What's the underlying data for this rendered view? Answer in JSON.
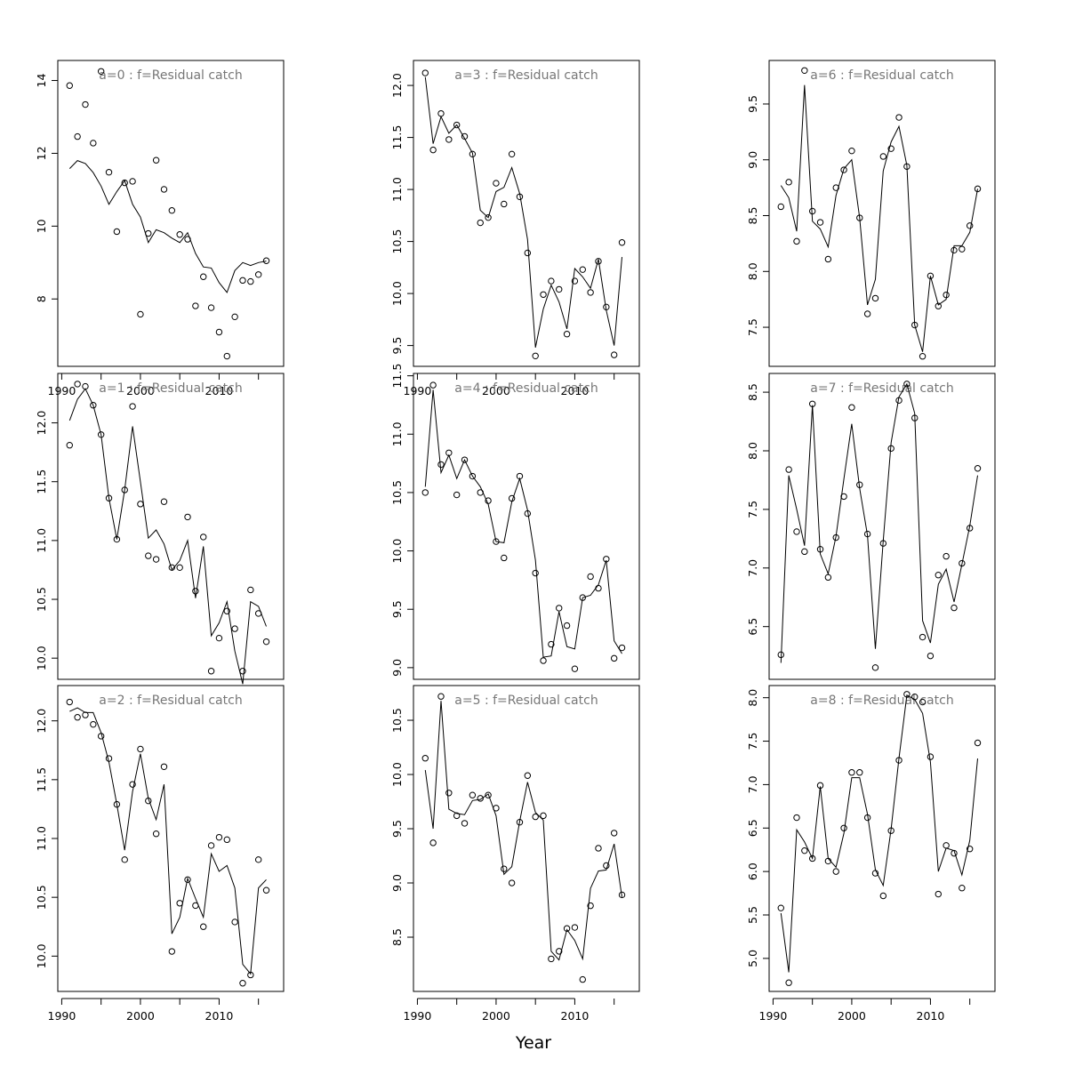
{
  "figure": {
    "xlabel": "Year"
  },
  "chart_data": [
    {
      "type": "line",
      "title": "a=0  :  f=Residual catch",
      "ylabel": "",
      "xlabel": "",
      "years": [
        1991,
        1992,
        1993,
        1994,
        1995,
        1996,
        1997,
        1998,
        1999,
        2000,
        2001,
        2002,
        2003,
        2004,
        2005,
        2006,
        2007,
        2008,
        2009,
        2010,
        2011,
        2012,
        2013,
        2014,
        2015,
        2016
      ],
      "observed": [
        13.86,
        12.46,
        13.34,
        12.28,
        14.25,
        11.48,
        9.85,
        11.19,
        11.23,
        7.58,
        9.8,
        11.81,
        11.01,
        10.43,
        9.77,
        9.64,
        7.81,
        8.61,
        7.76,
        7.09,
        6.43,
        7.51,
        8.51,
        8.48,
        8.67,
        9.05
      ],
      "fitted": [
        11.58,
        11.8,
        11.72,
        11.47,
        11.1,
        10.6,
        10.95,
        11.25,
        10.6,
        10.25,
        9.55,
        9.9,
        9.82,
        9.67,
        9.55,
        9.82,
        9.25,
        8.88,
        8.85,
        8.45,
        8.18,
        8.78,
        9.0,
        8.92,
        9.0,
        9.04
      ],
      "ylim": [
        6.15,
        14.55
      ],
      "yticks": [
        8,
        10,
        12,
        14
      ],
      "xticks": [
        1990,
        2000,
        2010
      ],
      "show_xaxis": true
    },
    {
      "type": "line",
      "title": "a=1  :  f=Residual catch",
      "ylabel": "",
      "xlabel": "",
      "years": [
        1991,
        1992,
        1993,
        1994,
        1995,
        1996,
        1997,
        1998,
        1999,
        2000,
        2001,
        2002,
        2003,
        2004,
        2005,
        2006,
        2007,
        2008,
        2009,
        2010,
        2011,
        2012,
        2013,
        2014,
        2015,
        2016
      ],
      "observed": [
        11.81,
        12.33,
        12.31,
        12.15,
        11.9,
        11.36,
        11.01,
        11.43,
        12.14,
        11.31,
        10.87,
        10.84,
        11.33,
        10.77,
        10.77,
        11.2,
        10.57,
        11.03,
        9.89,
        10.17,
        10.4,
        10.25,
        9.89,
        10.58,
        10.38,
        10.14
      ],
      "fitted": [
        12.02,
        12.2,
        12.29,
        12.15,
        11.9,
        11.36,
        11.01,
        11.43,
        11.97,
        11.5,
        11.02,
        11.09,
        10.97,
        10.75,
        10.83,
        11.0,
        10.51,
        10.95,
        10.19,
        10.3,
        10.48,
        10.06,
        9.78,
        10.48,
        10.44,
        10.27
      ],
      "ylim": [
        9.82,
        12.42
      ],
      "yticks": [
        10.0,
        10.5,
        11.0,
        11.5,
        12.0
      ],
      "xticks": [
        1990,
        2000,
        2010
      ],
      "show_xaxis": false
    },
    {
      "type": "line",
      "title": "a=2  :  f=Residual catch",
      "ylabel": "",
      "xlabel": "",
      "years": [
        1991,
        1992,
        1993,
        1994,
        1995,
        1996,
        1997,
        1998,
        1999,
        2000,
        2001,
        2002,
        2003,
        2004,
        2005,
        2006,
        2007,
        2008,
        2009,
        2010,
        2011,
        2012,
        2013,
        2014,
        2015,
        2016
      ],
      "observed": [
        12.16,
        12.03,
        12.05,
        11.97,
        11.87,
        11.68,
        11.29,
        10.82,
        11.46,
        11.76,
        11.32,
        11.04,
        11.61,
        10.04,
        10.45,
        10.65,
        10.43,
        10.25,
        10.94,
        11.01,
        10.99,
        10.29,
        9.77,
        9.84,
        10.82,
        10.56
      ],
      "fitted": [
        12.08,
        12.11,
        12.07,
        12.07,
        11.9,
        11.65,
        11.29,
        10.9,
        11.4,
        11.72,
        11.34,
        11.16,
        11.46,
        10.19,
        10.33,
        10.66,
        10.49,
        10.33,
        10.87,
        10.72,
        10.77,
        10.58,
        9.93,
        9.85,
        10.58,
        10.65
      ],
      "ylim": [
        9.7,
        12.3
      ],
      "yticks": [
        10.0,
        10.5,
        11.0,
        11.5,
        12.0
      ],
      "xticks": [
        1990,
        2000,
        2010
      ],
      "show_xaxis": true
    },
    {
      "type": "line",
      "title": "a=3  :  f=Residual catch",
      "ylabel": "",
      "xlabel": "",
      "years": [
        1991,
        1992,
        1993,
        1994,
        1995,
        1996,
        1997,
        1998,
        1999,
        2000,
        2001,
        2002,
        2003,
        2004,
        2005,
        2006,
        2007,
        2008,
        2009,
        2010,
        2011,
        2012,
        2013,
        2014,
        2015,
        2016
      ],
      "observed": [
        12.12,
        11.38,
        11.73,
        11.48,
        11.62,
        11.51,
        11.34,
        10.68,
        10.73,
        11.06,
        10.86,
        11.34,
        10.93,
        10.39,
        9.4,
        9.99,
        10.12,
        10.04,
        9.61,
        10.12,
        10.23,
        10.01,
        10.31,
        9.87,
        9.41,
        10.49
      ],
      "fitted": [
        12.08,
        11.44,
        11.7,
        11.54,
        11.62,
        11.49,
        11.35,
        10.8,
        10.73,
        10.98,
        11.02,
        11.21,
        10.96,
        10.52,
        9.48,
        9.85,
        10.08,
        9.92,
        9.66,
        10.24,
        10.16,
        10.05,
        10.33,
        9.84,
        9.5,
        10.35
      ],
      "ylim": [
        9.3,
        12.24
      ],
      "yticks": [
        9.5,
        10.0,
        10.5,
        11.0,
        11.5,
        12.0
      ],
      "xticks": [
        1990,
        2000,
        2010
      ],
      "show_xaxis": true
    },
    {
      "type": "line",
      "title": "a=4  :  f=Residual catch",
      "ylabel": "",
      "xlabel": "",
      "years": [
        1991,
        1992,
        1993,
        1994,
        1995,
        1996,
        1997,
        1998,
        1999,
        2000,
        2001,
        2002,
        2003,
        2004,
        2005,
        2006,
        2007,
        2008,
        2009,
        2010,
        2011,
        2012,
        2013,
        2014,
        2015,
        2016
      ],
      "observed": [
        10.5,
        11.42,
        10.74,
        10.84,
        10.48,
        10.78,
        10.64,
        10.5,
        10.43,
        10.08,
        9.94,
        10.45,
        10.64,
        10.32,
        9.81,
        9.06,
        9.2,
        9.51,
        9.36,
        8.99,
        9.6,
        9.78,
        9.68,
        9.93,
        9.08,
        9.17
      ],
      "fitted": [
        10.55,
        11.38,
        10.67,
        10.82,
        10.62,
        10.78,
        10.64,
        10.55,
        10.4,
        10.08,
        10.07,
        10.42,
        10.62,
        10.35,
        9.92,
        9.09,
        9.1,
        9.48,
        9.18,
        9.16,
        9.6,
        9.62,
        9.71,
        9.92,
        9.23,
        9.12
      ],
      "ylim": [
        8.9,
        11.52
      ],
      "yticks": [
        9.0,
        9.5,
        10.0,
        10.5,
        11.0,
        11.5
      ],
      "xticks": [
        1990,
        2000,
        2010
      ],
      "show_xaxis": false
    },
    {
      "type": "line",
      "title": "a=5  :  f=Residual catch",
      "ylabel": "",
      "xlabel": "",
      "years": [
        1991,
        1992,
        1993,
        1994,
        1995,
        1996,
        1997,
        1998,
        1999,
        2000,
        2001,
        2002,
        2003,
        2004,
        2005,
        2006,
        2007,
        2008,
        2009,
        2010,
        2011,
        2012,
        2013,
        2014,
        2015,
        2016
      ],
      "observed": [
        10.15,
        9.37,
        10.72,
        9.83,
        9.62,
        9.55,
        9.81,
        9.78,
        9.81,
        9.69,
        9.13,
        9.0,
        9.56,
        9.99,
        9.61,
        9.62,
        8.3,
        8.37,
        8.58,
        8.59,
        8.11,
        8.79,
        9.32,
        9.16,
        9.46,
        8.89
      ],
      "fitted": [
        10.04,
        9.5,
        10.68,
        9.68,
        9.64,
        9.63,
        9.76,
        9.77,
        9.82,
        9.62,
        9.08,
        9.15,
        9.57,
        9.93,
        9.65,
        9.58,
        8.37,
        8.29,
        8.57,
        8.47,
        8.3,
        8.95,
        9.11,
        9.12,
        9.36,
        8.87
      ],
      "ylim": [
        8.0,
        10.82
      ],
      "yticks": [
        8.5,
        9.0,
        9.5,
        10.0,
        10.5
      ],
      "xticks": [
        1990,
        2000,
        2010
      ],
      "show_xaxis": true
    },
    {
      "type": "line",
      "title": "a=6  :  f=Residual catch",
      "ylabel": "",
      "xlabel": "",
      "years": [
        1991,
        1992,
        1993,
        1994,
        1995,
        1996,
        1997,
        1998,
        1999,
        2000,
        2001,
        2002,
        2003,
        2004,
        2005,
        2006,
        2007,
        2008,
        2009,
        2010,
        2011,
        2012,
        2013,
        2014,
        2015,
        2016
      ],
      "observed": [
        8.58,
        8.8,
        8.27,
        9.8,
        8.54,
        8.44,
        8.11,
        8.75,
        8.91,
        9.08,
        8.48,
        7.62,
        7.76,
        9.03,
        9.1,
        9.38,
        8.94,
        7.52,
        7.24,
        7.96,
        7.69,
        7.79,
        8.19,
        8.2,
        8.41,
        8.74
      ],
      "fitted": [
        8.77,
        8.66,
        8.36,
        9.67,
        8.45,
        8.38,
        8.22,
        8.68,
        8.92,
        9.0,
        8.48,
        7.7,
        7.93,
        8.9,
        9.16,
        9.3,
        8.95,
        7.52,
        7.28,
        7.96,
        7.7,
        7.75,
        8.23,
        8.23,
        8.35,
        8.74
      ],
      "ylim": [
        7.15,
        9.89
      ],
      "yticks": [
        7.5,
        8.0,
        8.5,
        9.0,
        9.5
      ],
      "xticks": [
        1990,
        2000,
        2010
      ],
      "show_xaxis": false
    },
    {
      "type": "line",
      "title": "a=7  :  f=Residual catch",
      "ylabel": "",
      "xlabel": "",
      "years": [
        1991,
        1992,
        1993,
        1994,
        1995,
        1996,
        1997,
        1998,
        1999,
        2000,
        2001,
        2002,
        2003,
        2004,
        2005,
        2006,
        2007,
        2008,
        2009,
        2010,
        2011,
        2012,
        2013,
        2014,
        2015,
        2016
      ],
      "observed": [
        6.26,
        7.84,
        7.31,
        7.14,
        8.4,
        7.16,
        6.92,
        7.26,
        7.61,
        8.37,
        7.71,
        7.29,
        6.15,
        7.21,
        8.02,
        8.43,
        8.57,
        8.28,
        6.41,
        6.25,
        6.94,
        7.1,
        6.66,
        7.04,
        7.34,
        7.85
      ],
      "fitted": [
        6.19,
        7.79,
        7.5,
        7.19,
        8.39,
        7.12,
        6.95,
        7.27,
        7.76,
        8.23,
        7.68,
        7.28,
        6.31,
        7.23,
        8.07,
        8.46,
        8.57,
        8.32,
        6.55,
        6.36,
        6.86,
        6.99,
        6.71,
        7.03,
        7.36,
        7.79
      ],
      "ylim": [
        6.05,
        8.66
      ],
      "yticks": [
        6.5,
        7.0,
        7.5,
        8.0,
        8.5
      ],
      "xticks": [
        1990,
        2000,
        2010
      ],
      "show_xaxis": false
    },
    {
      "type": "line",
      "title": "a=8  :  f=Residual catch",
      "ylabel": "",
      "xlabel": "",
      "years": [
        1991,
        1992,
        1993,
        1994,
        1995,
        1996,
        1997,
        1998,
        1999,
        2000,
        2001,
        2002,
        2003,
        2004,
        2005,
        2006,
        2007,
        2008,
        2009,
        2010,
        2011,
        2012,
        2013,
        2014,
        2015,
        2016
      ],
      "observed": [
        5.58,
        4.72,
        6.62,
        6.24,
        6.15,
        6.99,
        6.12,
        6.0,
        6.5,
        7.14,
        7.14,
        6.62,
        5.98,
        5.72,
        6.47,
        7.28,
        8.04,
        8.01,
        7.95,
        7.32,
        5.74,
        6.3,
        6.21,
        5.81,
        6.26,
        7.48
      ],
      "fitted": [
        5.52,
        4.84,
        6.48,
        6.34,
        6.15,
        6.98,
        6.15,
        6.05,
        6.44,
        7.08,
        7.08,
        6.66,
        6.02,
        5.84,
        6.49,
        7.3,
        8.03,
        7.98,
        7.82,
        7.26,
        6.0,
        6.27,
        6.24,
        5.96,
        6.36,
        7.3
      ],
      "ylim": [
        4.62,
        8.14
      ],
      "yticks": [
        5.0,
        5.5,
        6.0,
        6.5,
        7.0,
        7.5,
        8.0
      ],
      "xticks": [
        1990,
        2000,
        2010
      ],
      "show_xaxis": true
    }
  ]
}
